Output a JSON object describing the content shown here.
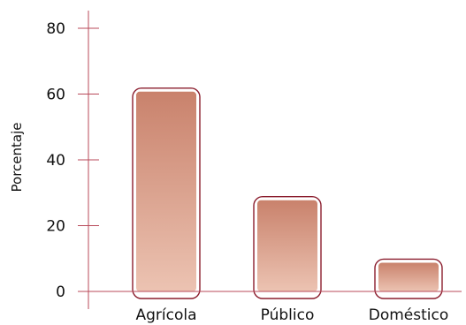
{
  "chart_data": {
    "type": "bar",
    "categories": [
      "Agrícola",
      "Público",
      "Doméstico"
    ],
    "values": [
      61,
      28,
      9
    ],
    "title": "",
    "xlabel": "",
    "ylabel": "Porcentaje",
    "ylim": [
      0,
      80
    ],
    "yticks": [
      0,
      20,
      40,
      60,
      80
    ],
    "grid": false,
    "colors": {
      "axis": "#b84a5a",
      "bar_outline": "#8b1e2e",
      "bar_top": "#c9826c",
      "bar_bottom": "#ecc3b2"
    }
  }
}
